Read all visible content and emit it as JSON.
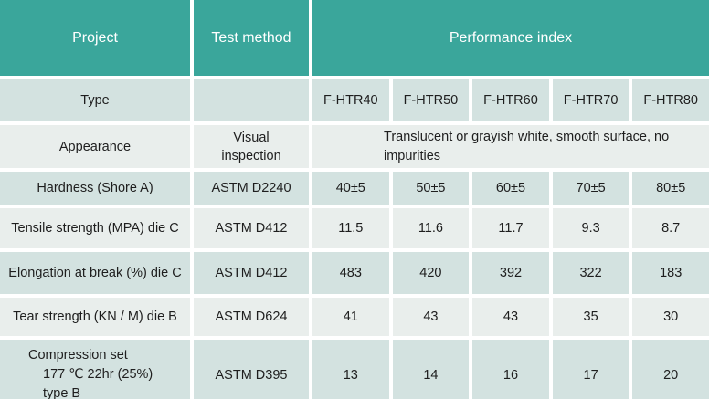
{
  "colors": {
    "header_bg": "#3aa69b",
    "row_dark_bg": "#d3e2e0",
    "row_light_bg": "#e9eeec",
    "divider": "#ffffff",
    "header_text": "#ffffff",
    "body_text": "#1e1e1e"
  },
  "table": {
    "header": {
      "project": "Project",
      "test_method": "Test method",
      "performance_index": "Performance index"
    },
    "type_row": {
      "name": "Type",
      "grades": [
        "F-HTR40",
        "F-HTR50",
        "F-HTR60",
        "F-HTR70",
        "F-HTR80"
      ]
    },
    "appearance_row": {
      "name": "Appearance",
      "method": "Visual inspection",
      "value": "Translucent or grayish white, smooth surface, no impurities",
      "value_lines": [
        "Translucent or grayish white, smooth surface, no",
        "impurities"
      ]
    },
    "rows": [
      {
        "name": "Hardness (Shore A)",
        "method": "ASTM D2240",
        "values": [
          "40±5",
          "50±5",
          "60±5",
          "70±5",
          "80±5"
        ]
      },
      {
        "name": "Tensile strength (MPA) die C",
        "method": "ASTM D412",
        "values": [
          "11.5",
          "11.6",
          "11.7",
          "9.3",
          "8.7"
        ]
      },
      {
        "name": "Elongation at break (%) die C",
        "method": "ASTM D412",
        "values": [
          "483",
          "420",
          "392",
          "322",
          "183"
        ]
      },
      {
        "name": "Tear strength (KN / M) die B",
        "method": "ASTM D624",
        "values": [
          "41",
          "43",
          "43",
          "35",
          "30"
        ]
      },
      {
        "name": "Compression set 177 ℃ 22hr (25%) type B",
        "name_lines": [
          "Compression set",
          "177 ℃ 22hr (25%)",
          "type B"
        ],
        "method": "ASTM D395",
        "values": [
          "13",
          "14",
          "16",
          "17",
          "20"
        ]
      }
    ]
  }
}
